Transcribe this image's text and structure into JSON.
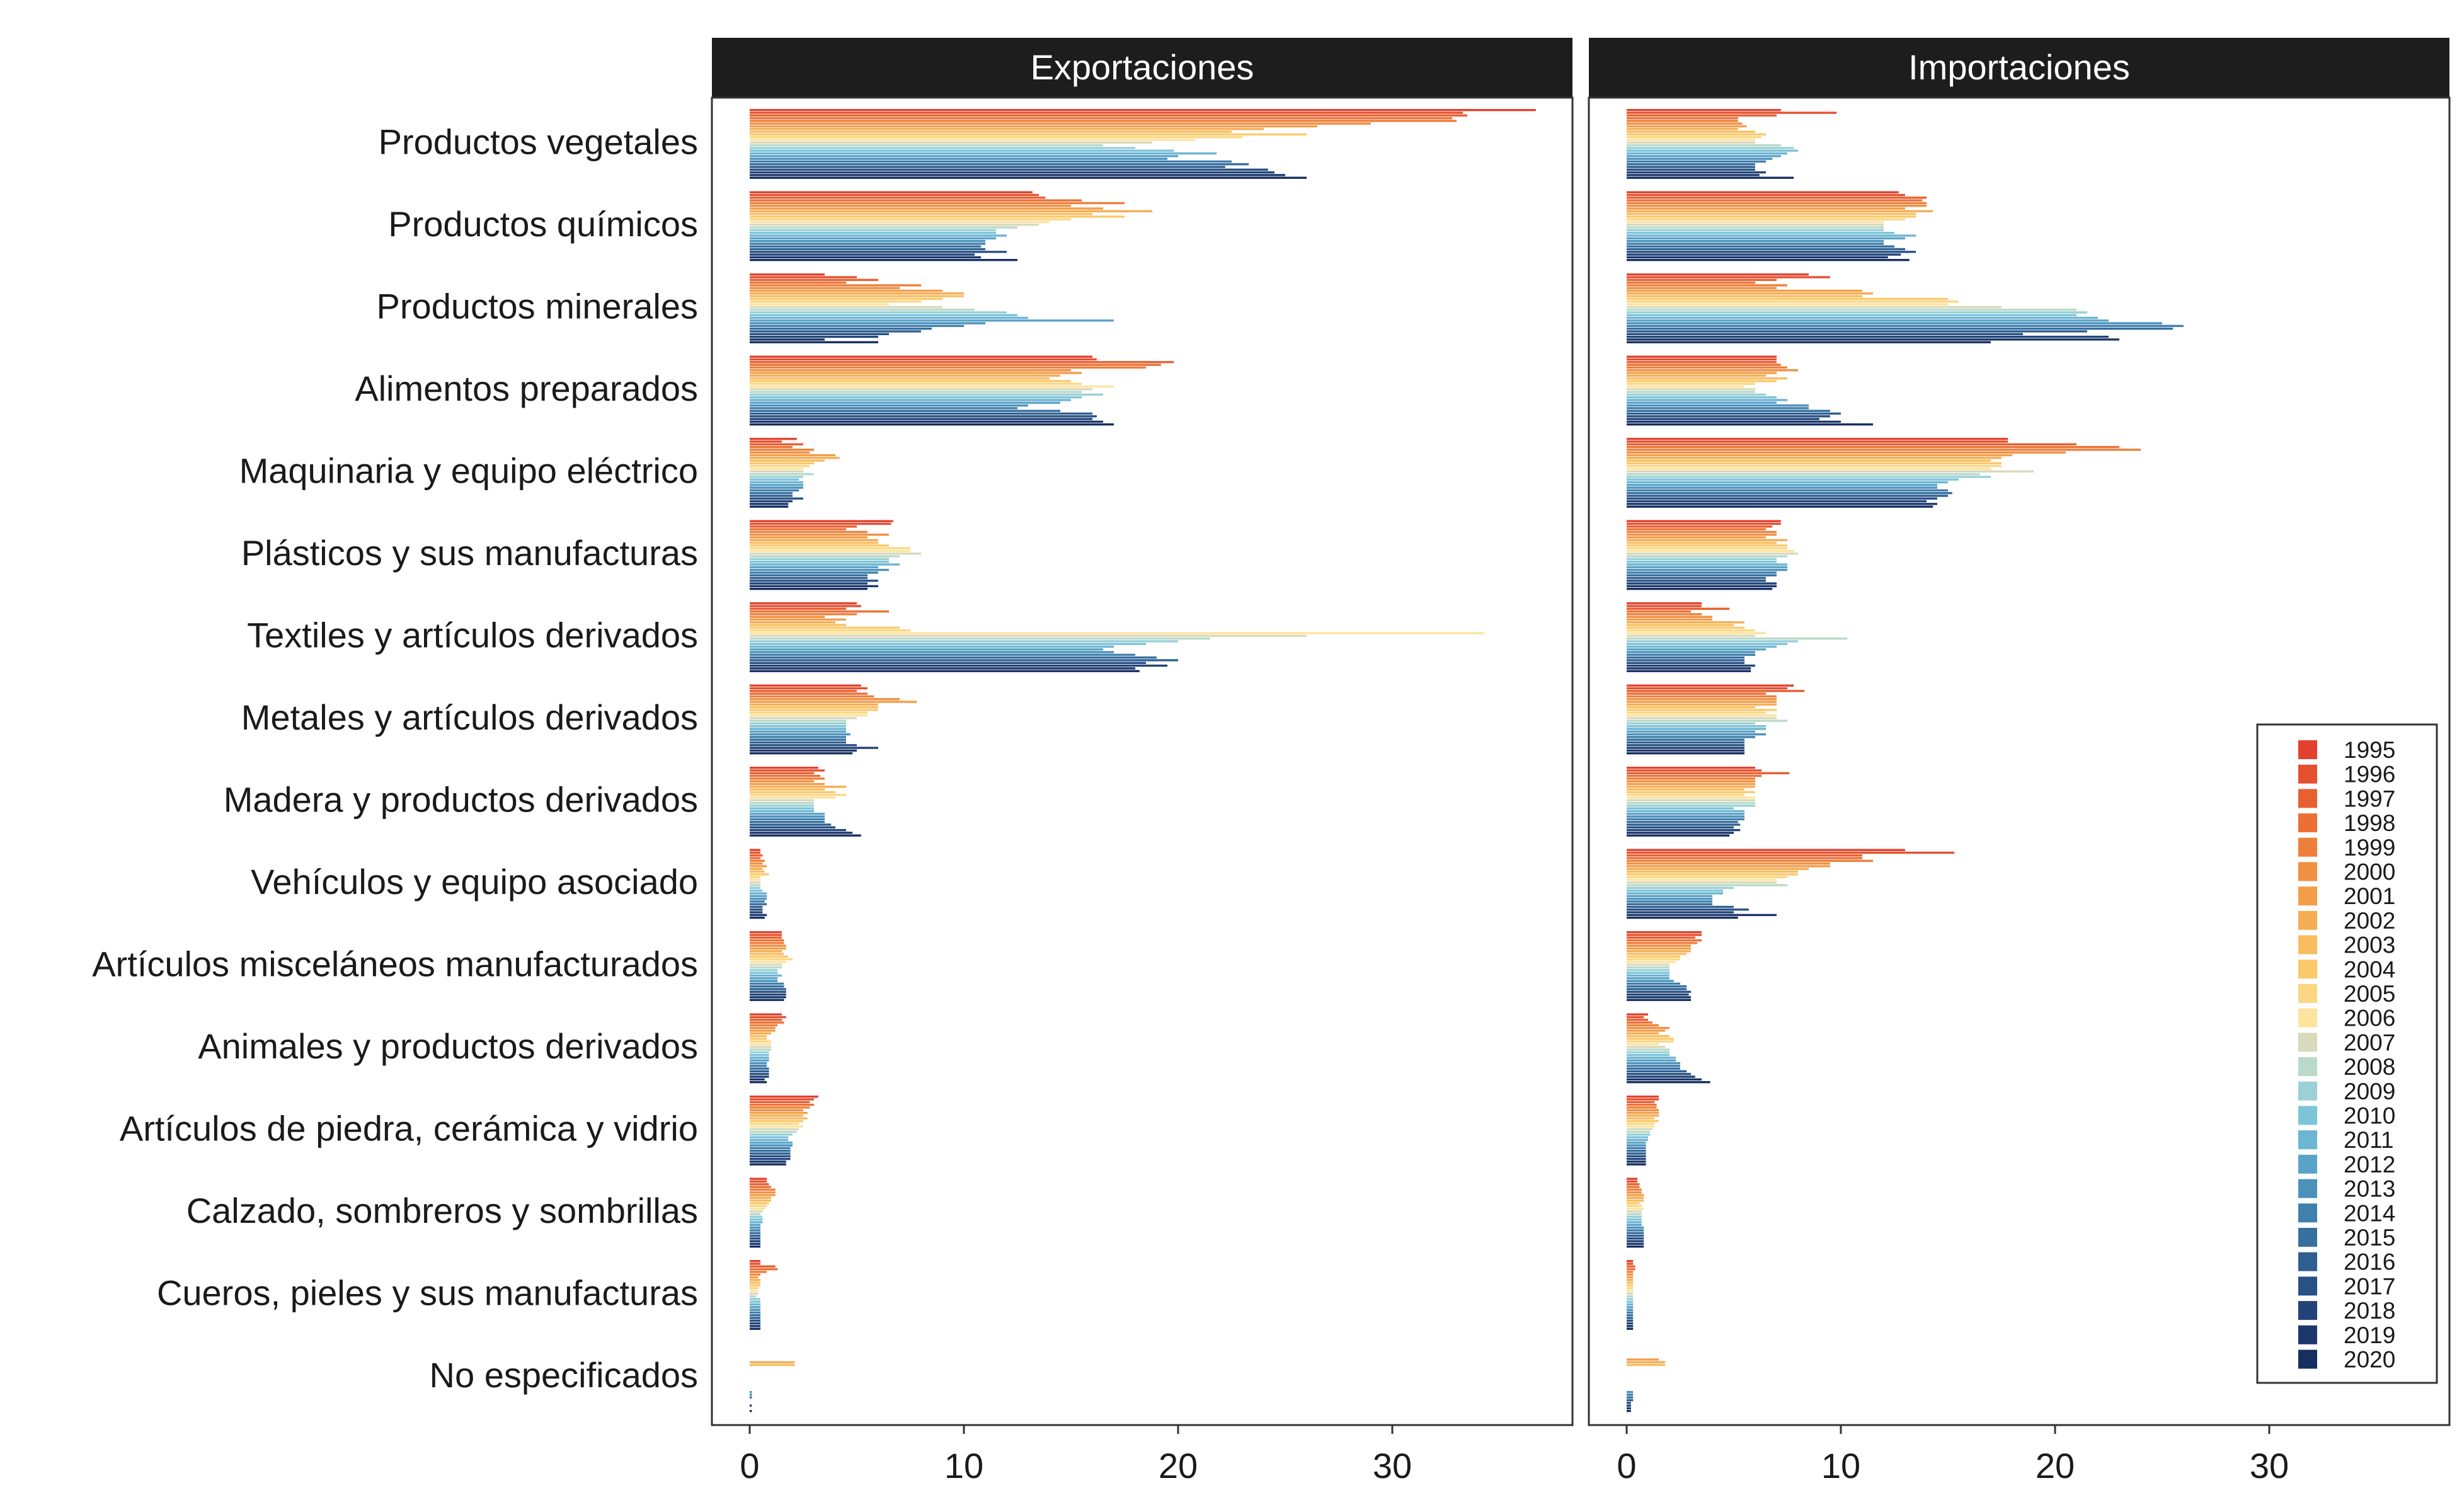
{
  "chart_data": {
    "type": "bar",
    "orientation": "horizontal",
    "facets": [
      "Exportaciones",
      "Importaciones"
    ],
    "categories": [
      "Productos vegetales",
      "Productos químicos",
      "Productos minerales",
      "Alimentos preparados",
      "Maquinaria y equipo eléctrico",
      "Plásticos y sus manufacturas",
      "Textiles y artículos derivados",
      "Metales y artículos derivados",
      "Madera y productos derivados",
      "Vehículos y equipo asociado",
      "Artículos misceláneos manufacturados",
      "Animales y productos derivados",
      "Artículos de piedra, cerámica y vidrio",
      "Calzado, sombreros y sombrillas",
      "Cueros, pieles y sus manufacturas",
      "No especificados"
    ],
    "years": [
      "1995",
      "1996",
      "1997",
      "1998",
      "1999",
      "2000",
      "2001",
      "2002",
      "2003",
      "2004",
      "2005",
      "2006",
      "2007",
      "2008",
      "2009",
      "2010",
      "2011",
      "2012",
      "2013",
      "2014",
      "2015",
      "2016",
      "2017",
      "2018",
      "2019",
      "2020"
    ],
    "colors": [
      "#e3412e",
      "#e5502f",
      "#e85f31",
      "#ec7036",
      "#ee7f3b",
      "#f18f42",
      "#f39d4a",
      "#f6ad55",
      "#f9bd60",
      "#fbc96b",
      "#fcd783",
      "#fde3a0",
      "#d9d9bb",
      "#b9d9c9",
      "#9ad0d6",
      "#7ec4d8",
      "#6cb5d3",
      "#5aa3c8",
      "#4b92bb",
      "#4080ad",
      "#376f9f",
      "#2f5f91",
      "#285184",
      "#214377",
      "#1b376b",
      "#162e60"
    ],
    "xlim": [
      0,
      37
    ],
    "xticks": [
      0,
      10,
      20,
      30
    ],
    "legend_position": "right",
    "grid": false,
    "series": [
      {
        "name": "Exportaciones",
        "values": [
          [
            36.7,
            33.3,
            33.5,
            32.8,
            33.0,
            29.0,
            26.5,
            24.0,
            22.5,
            26.0,
            23.0,
            20.8,
            18.8,
            16.5,
            18.0,
            19.8,
            21.8,
            20.0,
            19.5,
            22.5,
            23.3,
            22.2,
            24.2,
            24.5,
            25.0,
            26.0
          ],
          [
            13.2,
            13.5,
            13.8,
            15.5,
            17.5,
            15.0,
            16.5,
            18.8,
            16.0,
            17.5,
            15.0,
            14.0,
            13.5,
            12.5,
            11.5,
            11.5,
            12.0,
            11.5,
            11.0,
            11.0,
            10.8,
            11.0,
            12.0,
            10.5,
            10.8,
            12.5
          ],
          [
            3.5,
            5.0,
            6.0,
            4.5,
            8.0,
            7.0,
            9.0,
            10.0,
            10.0,
            9.0,
            8.0,
            6.5,
            9.0,
            10.5,
            12.0,
            12.5,
            13.0,
            17.0,
            11.0,
            10.0,
            8.5,
            8.0,
            6.5,
            6.0,
            3.5,
            6.0
          ],
          [
            16.0,
            16.2,
            19.8,
            19.2,
            18.5,
            15.0,
            15.5,
            14.5,
            14.0,
            15.0,
            15.5,
            17.0,
            16.0,
            15.5,
            16.5,
            15.5,
            15.0,
            14.5,
            13.0,
            12.5,
            14.5,
            16.0,
            16.2,
            16.0,
            16.5,
            17.0
          ],
          [
            2.2,
            1.5,
            2.5,
            2.0,
            3.0,
            2.8,
            4.0,
            4.2,
            3.5,
            3.0,
            2.8,
            2.5,
            2.5,
            3.0,
            2.5,
            2.3,
            2.5,
            2.5,
            2.5,
            2.3,
            2.0,
            2.0,
            2.5,
            2.0,
            1.8,
            1.8
          ],
          [
            6.7,
            6.6,
            5.0,
            4.5,
            5.5,
            6.5,
            5.5,
            6.0,
            6.0,
            6.5,
            7.5,
            7.5,
            8.0,
            7.0,
            6.5,
            6.5,
            7.0,
            6.0,
            6.5,
            6.0,
            5.5,
            5.5,
            6.0,
            5.5,
            6.0,
            5.5
          ],
          [
            5.0,
            5.2,
            4.5,
            6.5,
            5.0,
            3.5,
            4.5,
            4.0,
            4.5,
            7.0,
            7.5,
            34.3,
            26.0,
            21.5,
            20.0,
            18.5,
            17.0,
            16.5,
            17.0,
            18.0,
            19.0,
            20.0,
            18.5,
            19.5,
            18.0,
            18.2
          ],
          [
            5.2,
            5.5,
            5.0,
            5.5,
            5.8,
            7.0,
            7.8,
            6.0,
            6.0,
            6.0,
            5.5,
            5.5,
            5.0,
            4.5,
            4.5,
            4.5,
            4.5,
            4.5,
            4.7,
            4.5,
            4.5,
            4.5,
            5.0,
            6.0,
            5.0,
            4.8
          ],
          [
            3.2,
            3.5,
            3.0,
            3.3,
            3.5,
            3.0,
            3.5,
            4.5,
            3.5,
            4.0,
            4.5,
            4.0,
            3.0,
            3.0,
            3.0,
            3.0,
            3.0,
            3.5,
            3.5,
            3.5,
            3.5,
            3.8,
            4.0,
            4.5,
            4.8,
            5.2
          ],
          [
            0.5,
            0.5,
            0.6,
            0.5,
            0.7,
            0.6,
            0.8,
            0.6,
            0.7,
            0.9,
            0.5,
            0.5,
            0.5,
            0.5,
            0.5,
            0.6,
            0.8,
            0.8,
            0.8,
            0.7,
            0.8,
            0.6,
            0.6,
            0.6,
            0.8,
            0.7
          ],
          [
            1.5,
            1.5,
            1.5,
            1.6,
            1.6,
            1.7,
            1.7,
            1.5,
            1.6,
            1.8,
            2.0,
            1.7,
            1.5,
            1.5,
            1.3,
            1.3,
            1.5,
            1.3,
            1.3,
            1.6,
            1.6,
            1.7,
            1.7,
            1.7,
            1.7,
            1.6
          ],
          [
            1.5,
            1.7,
            1.5,
            1.6,
            1.3,
            1.2,
            1.2,
            1.0,
            0.8,
            0.8,
            1.0,
            1.0,
            1.0,
            1.0,
            0.9,
            0.9,
            0.9,
            0.9,
            0.8,
            0.8,
            0.9,
            0.9,
            0.9,
            0.9,
            0.7,
            0.8
          ],
          [
            3.2,
            3.0,
            2.8,
            3.0,
            2.8,
            2.5,
            2.7,
            2.5,
            2.7,
            2.5,
            2.3,
            2.5,
            2.3,
            2.2,
            2.0,
            1.8,
            1.8,
            2.0,
            2.0,
            1.9,
            1.9,
            1.9,
            1.9,
            1.9,
            1.7,
            1.7
          ],
          [
            0.8,
            0.8,
            0.9,
            1.0,
            1.2,
            1.2,
            1.2,
            1.0,
            1.0,
            0.9,
            0.8,
            0.7,
            0.6,
            0.5,
            0.6,
            0.6,
            0.6,
            0.5,
            0.5,
            0.5,
            0.5,
            0.5,
            0.5,
            0.5,
            0.5,
            0.5
          ],
          [
            0.5,
            0.5,
            1.2,
            1.3,
            0.8,
            0.5,
            0.4,
            0.5,
            0.5,
            0.5,
            0.4,
            0.4,
            0.4,
            0.3,
            0.5,
            0.5,
            0.5,
            0.5,
            0.5,
            0.5,
            0.5,
            0.5,
            0.5,
            0.5,
            0.5,
            0.5
          ],
          [
            0.0,
            0.0,
            0.0,
            0.0,
            0.0,
            0.0,
            0.0,
            2.1,
            2.1,
            0.0,
            0.0,
            0.0,
            0.0,
            0.0,
            0.0,
            0.0,
            0.0,
            0.0,
            0.1,
            0.1,
            0.1,
            0.0,
            0.0,
            0.1,
            0.0,
            0.1
          ]
        ]
      },
      {
        "name": "Importaciones",
        "values": [
          [
            7.2,
            9.8,
            7.0,
            5.2,
            5.2,
            5.4,
            5.6,
            5.2,
            6.0,
            6.5,
            6.3,
            6.0,
            6.0,
            7.2,
            7.8,
            8.0,
            7.5,
            7.2,
            6.8,
            6.5,
            6.0,
            6.0,
            6.0,
            6.5,
            6.2,
            7.8
          ],
          [
            12.7,
            13.0,
            14.0,
            13.8,
            14.0,
            14.0,
            13.0,
            14.3,
            13.5,
            13.5,
            13.0,
            12.0,
            12.0,
            12.0,
            12.0,
            12.5,
            13.5,
            13.0,
            12.0,
            12.0,
            12.5,
            13.0,
            13.5,
            12.8,
            12.2,
            13.2
          ],
          [
            8.5,
            9.5,
            7.0,
            6.0,
            7.5,
            7.0,
            11.0,
            11.5,
            11.0,
            15.0,
            15.5,
            15.0,
            17.5,
            21.0,
            21.5,
            21.0,
            22.0,
            22.5,
            25.0,
            26.0,
            25.5,
            21.5,
            18.5,
            22.5,
            23.0,
            17.0
          ],
          [
            7.0,
            7.0,
            7.0,
            7.2,
            7.5,
            8.0,
            7.0,
            6.5,
            7.5,
            7.0,
            6.0,
            5.5,
            6.0,
            6.0,
            6.5,
            7.0,
            7.5,
            7.0,
            8.5,
            8.5,
            9.5,
            10.0,
            9.5,
            9.0,
            10.0,
            11.5
          ],
          [
            17.8,
            17.8,
            21.0,
            23.0,
            24.0,
            20.5,
            18.0,
            17.5,
            17.0,
            17.5,
            17.5,
            17.0,
            19.0,
            16.5,
            17.0,
            15.5,
            15.0,
            14.5,
            14.5,
            15.0,
            15.2,
            15.0,
            14.5,
            14.0,
            14.5,
            14.3
          ],
          [
            7.2,
            7.2,
            6.8,
            6.5,
            7.0,
            7.0,
            6.5,
            7.5,
            7.0,
            7.5,
            7.5,
            7.8,
            8.0,
            7.5,
            7.0,
            7.0,
            7.5,
            7.5,
            7.5,
            7.0,
            7.0,
            6.5,
            6.5,
            7.0,
            7.0,
            6.8
          ],
          [
            3.5,
            3.5,
            4.8,
            3.0,
            3.5,
            4.0,
            4.0,
            5.5,
            5.0,
            5.5,
            6.0,
            6.5,
            6.0,
            10.3,
            8.0,
            7.5,
            7.0,
            6.5,
            6.0,
            6.0,
            5.5,
            5.5,
            5.5,
            6.0,
            5.8,
            5.8
          ],
          [
            7.8,
            7.5,
            8.3,
            6.5,
            7.0,
            7.0,
            7.0,
            7.0,
            6.0,
            7.0,
            6.5,
            7.0,
            7.0,
            7.5,
            6.0,
            6.5,
            6.5,
            6.0,
            6.5,
            6.0,
            5.5,
            5.5,
            5.5,
            5.5,
            5.5,
            5.5
          ],
          [
            6.0,
            6.3,
            7.6,
            6.3,
            6.0,
            6.0,
            6.0,
            6.0,
            5.5,
            6.0,
            5.5,
            6.0,
            6.0,
            6.0,
            6.0,
            5.0,
            5.5,
            5.5,
            5.5,
            5.5,
            5.2,
            5.3,
            5.0,
            5.3,
            5.0,
            4.8
          ],
          [
            13.0,
            15.3,
            11.0,
            11.0,
            11.5,
            9.5,
            9.5,
            8.5,
            8.0,
            8.0,
            7.5,
            7.0,
            7.0,
            7.5,
            5.0,
            4.5,
            4.5,
            4.0,
            4.0,
            4.0,
            4.0,
            5.0,
            5.7,
            5.0,
            7.0,
            5.2
          ],
          [
            3.5,
            3.5,
            3.2,
            3.5,
            3.3,
            3.0,
            3.0,
            3.0,
            2.8,
            2.5,
            2.5,
            2.3,
            2.0,
            2.0,
            2.0,
            2.0,
            2.0,
            2.0,
            2.2,
            2.5,
            2.8,
            2.8,
            3.0,
            2.9,
            3.0,
            3.0
          ],
          [
            1.0,
            0.8,
            1.0,
            1.2,
            1.5,
            2.0,
            1.8,
            1.5,
            2.0,
            2.2,
            2.2,
            1.5,
            1.8,
            2.0,
            2.0,
            2.0,
            2.3,
            2.3,
            2.5,
            2.5,
            2.5,
            2.8,
            3.0,
            3.2,
            3.5,
            3.9
          ],
          [
            1.5,
            1.5,
            1.3,
            1.4,
            1.4,
            1.5,
            1.5,
            1.5,
            1.3,
            1.5,
            1.3,
            1.3,
            1.2,
            1.1,
            1.1,
            1.0,
            1.0,
            0.9,
            0.9,
            0.9,
            0.9,
            0.9,
            0.9,
            0.9,
            0.9,
            0.9
          ],
          [
            0.5,
            0.5,
            0.6,
            0.6,
            0.7,
            0.7,
            0.8,
            0.8,
            0.8,
            0.6,
            0.7,
            0.8,
            0.7,
            0.7,
            0.7,
            0.7,
            0.7,
            0.7,
            0.8,
            0.8,
            0.8,
            0.8,
            0.8,
            0.8,
            0.8,
            0.8
          ],
          [
            0.3,
            0.3,
            0.4,
            0.4,
            0.3,
            0.3,
            0.3,
            0.3,
            0.3,
            0.3,
            0.3,
            0.3,
            0.3,
            0.3,
            0.3,
            0.3,
            0.3,
            0.3,
            0.3,
            0.3,
            0.3,
            0.3,
            0.3,
            0.3,
            0.3,
            0.3
          ],
          [
            0.0,
            0.0,
            0.0,
            0.0,
            0.0,
            0.0,
            1.5,
            1.8,
            1.8,
            0.0,
            0.0,
            0.0,
            0.0,
            0.0,
            0.0,
            0.0,
            0.0,
            0.0,
            0.3,
            0.3,
            0.3,
            0.3,
            0.2,
            0.2,
            0.2,
            0.2
          ]
        ]
      }
    ]
  }
}
